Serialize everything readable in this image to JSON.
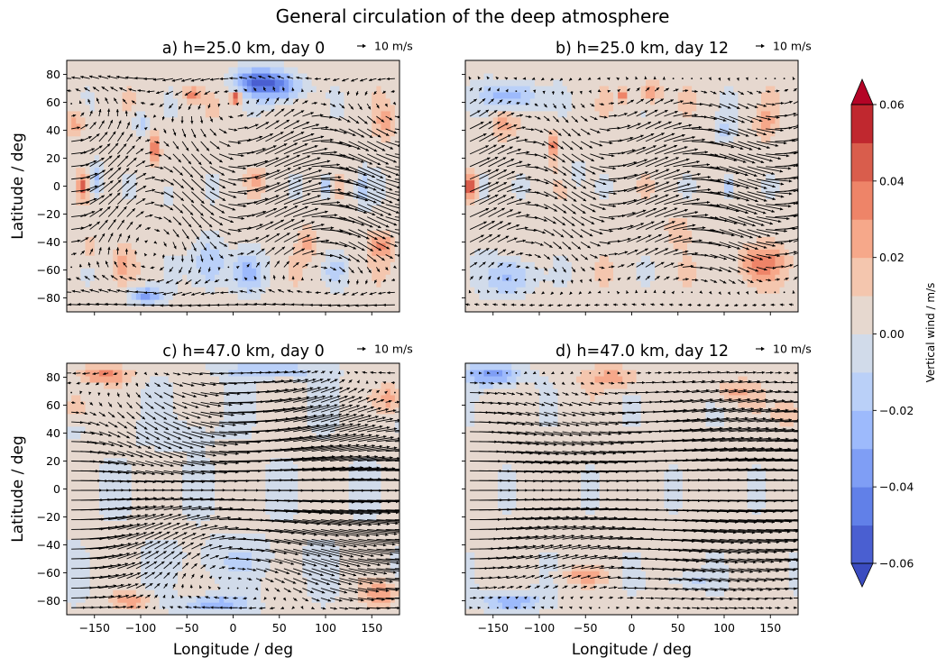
{
  "chart_data": {
    "type": "heatmap",
    "title": "General circulation of the deep atmosphere",
    "xlim": [
      -180,
      180
    ],
    "ylim": [
      -90,
      90
    ],
    "xticks": [
      -150,
      -100,
      -50,
      0,
      50,
      100,
      150
    ],
    "yticks": [
      -80,
      -60,
      -40,
      -20,
      0,
      20,
      40,
      60,
      80
    ],
    "colorbar": {
      "label": "Vertical wind / m/s",
      "levels": [
        -0.06,
        -0.05,
        -0.04,
        -0.03,
        -0.02,
        -0.01,
        0.0,
        0.01,
        0.02,
        0.03,
        0.04,
        0.05,
        0.06
      ],
      "tick_values": [
        -0.06,
        -0.04,
        -0.02,
        0.0,
        0.02,
        0.04,
        0.06
      ],
      "tick_labels": [
        "−0.06",
        "−0.04",
        "−0.02",
        "0.00",
        "0.02",
        "0.04",
        "0.06"
      ],
      "extend": "both",
      "colors": [
        "#4a5fd1",
        "#6180e8",
        "#7f9ef5",
        "#9dbafc",
        "#bad0f8",
        "#d1dbea",
        "#e6d8cf",
        "#f4c6ae",
        "#f6a88a",
        "#ee8468",
        "#d95d4c",
        "#c0282f"
      ],
      "under_color": "#3b4cc0",
      "over_color": "#b40426"
    },
    "quiver_key": {
      "magnitude": 10,
      "label": "10 m/s"
    },
    "panels": [
      {
        "title": "a) h=25.0 km, day 0",
        "height_km": 25.0,
        "day": 0,
        "xlabel": "",
        "ylabel": "Latitude / deg",
        "background_value": 0.005,
        "anomalies": [
          {
            "lon": 3,
            "lat": 64,
            "w": 0.06,
            "rlon": 5,
            "rlat": 4
          },
          {
            "lon": 28,
            "lat": 75,
            "w": -0.05,
            "rlon": 28,
            "rlat": 10
          },
          {
            "lon": 55,
            "lat": 70,
            "w": -0.03,
            "rlon": 25,
            "rlat": 10
          },
          {
            "lon": -45,
            "lat": 66,
            "w": 0.03,
            "rlon": 9,
            "rlat": 5
          },
          {
            "lon": -85,
            "lat": 28,
            "w": 0.04,
            "rlon": 5,
            "rlat": 10
          },
          {
            "lon": -163,
            "lat": 0,
            "w": 0.04,
            "rlon": 5,
            "rlat": 7
          },
          {
            "lon": -148,
            "lat": 5,
            "w": -0.03,
            "rlon": 6,
            "rlat": 14
          },
          {
            "lon": 100,
            "lat": 0,
            "w": -0.03,
            "rlon": 6,
            "rlat": 10
          },
          {
            "lon": 140,
            "lat": -2,
            "w": -0.02,
            "rlon": 8,
            "rlat": 14
          },
          {
            "lon": -25,
            "lat": -55,
            "w": -0.03,
            "rlon": 18,
            "rlat": 18
          },
          {
            "lon": 15,
            "lat": -62,
            "w": -0.025,
            "rlon": 18,
            "rlat": 14
          },
          {
            "lon": -95,
            "lat": -78,
            "w": -0.04,
            "rlon": 18,
            "rlat": 6
          },
          {
            "lon": -100,
            "lat": 45,
            "w": -0.02,
            "rlon": 10,
            "rlat": 8
          },
          {
            "lon": 160,
            "lat": -42,
            "w": 0.025,
            "rlon": 12,
            "rlat": 10
          },
          {
            "lon": -170,
            "lat": 45,
            "w": 0.02,
            "rlon": 10,
            "rlat": 10
          },
          {
            "lon": -155,
            "lat": -45,
            "w": 0.02,
            "rlon": 8,
            "rlat": 8
          },
          {
            "lon": 165,
            "lat": 45,
            "w": 0.02,
            "rlon": 10,
            "rlat": 10
          },
          {
            "lon": 25,
            "lat": 5,
            "w": 0.015,
            "rlon": 8,
            "rlat": 6
          },
          {
            "lon": -70,
            "lat": -5,
            "w": -0.015,
            "rlon": 10,
            "rlat": 12
          },
          {
            "lon": -120,
            "lat": -55,
            "w": 0.015,
            "rlon": 10,
            "rlat": 12
          },
          {
            "lon": 80,
            "lat": -40,
            "w": 0.02,
            "rlon": 8,
            "rlat": 10
          },
          {
            "lon": 110,
            "lat": -60,
            "w": -0.02,
            "rlon": 10,
            "rlat": 10
          }
        ],
        "wind_field": {
          "u": "10*cos(1.5*lat)+5*sin(lon)*cos(lat)",
          "v": "6*sin(2*lon)*cos(lat)",
          "lon_step": 10,
          "lat_step": 9
        }
      },
      {
        "title": "b) h=25.0 km, day 12",
        "height_km": 25.0,
        "day": 12,
        "xlabel": "",
        "ylabel": "",
        "background_value": 0.005,
        "anomalies": [
          {
            "lon": -130,
            "lat": 65,
            "w": -0.035,
            "rlon": 30,
            "rlat": 10
          },
          {
            "lon": -10,
            "lat": 65,
            "w": 0.04,
            "rlon": 4,
            "rlat": 4
          },
          {
            "lon": 20,
            "lat": 68,
            "w": 0.025,
            "rlon": 12,
            "rlat": 8
          },
          {
            "lon": -85,
            "lat": 30,
            "w": 0.035,
            "rlon": 5,
            "rlat": 10
          },
          {
            "lon": -175,
            "lat": 0,
            "w": 0.045,
            "rlon": 5,
            "rlat": 7
          },
          {
            "lon": -160,
            "lat": 0,
            "w": -0.025,
            "rlon": 5,
            "rlat": 10
          },
          {
            "lon": 105,
            "lat": 0,
            "w": -0.035,
            "rlon": 5,
            "rlat": 8
          },
          {
            "lon": -130,
            "lat": -65,
            "w": -0.03,
            "rlon": 25,
            "rlat": 14
          },
          {
            "lon": 140,
            "lat": -55,
            "w": 0.03,
            "rlon": 25,
            "rlat": 12
          },
          {
            "lon": 145,
            "lat": 45,
            "w": 0.02,
            "rlon": 10,
            "rlat": 10
          },
          {
            "lon": -140,
            "lat": 45,
            "w": 0.02,
            "rlon": 12,
            "rlat": 10
          },
          {
            "lon": 50,
            "lat": -30,
            "w": 0.015,
            "rlon": 12,
            "rlat": 10
          },
          {
            "lon": -60,
            "lat": 10,
            "w": -0.015,
            "rlon": 10,
            "rlat": 10
          },
          {
            "lon": 100,
            "lat": 40,
            "w": -0.015,
            "rlon": 10,
            "rlat": 10
          }
        ],
        "wind_field": {
          "u": "11*cos(1.2*lat)+4*sin(lon)*cos(lat)",
          "v": "5*sin(2*lon+1)*cos(lat)",
          "lon_step": 10,
          "lat_step": 9
        }
      },
      {
        "title": "c) h=47.0 km, day 0",
        "height_km": 47.0,
        "day": 0,
        "xlabel": "Longitude / deg",
        "ylabel": "Latitude / deg",
        "background_value": 0.002,
        "anomalies": [
          {
            "lon": -140,
            "lat": 82,
            "w": 0.03,
            "rlon": 30,
            "rlat": 6
          },
          {
            "lon": 40,
            "lat": 85,
            "w": -0.025,
            "rlon": 50,
            "rlat": 5
          },
          {
            "lon": 170,
            "lat": 65,
            "w": 0.025,
            "rlon": 15,
            "rlat": 10
          },
          {
            "lon": -170,
            "lat": 60,
            "w": 0.02,
            "rlon": 15,
            "rlat": 10
          },
          {
            "lon": -20,
            "lat": -82,
            "w": -0.03,
            "rlon": 35,
            "rlat": 6
          },
          {
            "lon": -110,
            "lat": -80,
            "w": 0.025,
            "rlon": 20,
            "rlat": 6
          },
          {
            "lon": 160,
            "lat": -75,
            "w": 0.025,
            "rlon": 20,
            "rlat": 10
          },
          {
            "lon": 0,
            "lat": -50,
            "w": -0.01,
            "rlon": 60,
            "rlat": 15
          },
          {
            "lon": -60,
            "lat": 40,
            "w": -0.01,
            "rlon": 40,
            "rlat": 10
          }
        ],
        "wind_field": {
          "u": "16*cos(lat)+6*sin(lon+lat)",
          "v": "4*sin(lon)*sin(2*lat)",
          "lon_step": 10,
          "lat_step": 7
        }
      },
      {
        "title": "d) h=47.0 km, day 12",
        "height_km": 47.0,
        "day": 12,
        "xlabel": "Longitude / deg",
        "ylabel": "",
        "background_value": 0.004,
        "anomalies": [
          {
            "lon": -150,
            "lat": 82,
            "w": -0.04,
            "rlon": 30,
            "rlat": 8
          },
          {
            "lon": -20,
            "lat": 80,
            "w": 0.02,
            "rlon": 30,
            "rlat": 8
          },
          {
            "lon": 110,
            "lat": 70,
            "w": 0.02,
            "rlon": 20,
            "rlat": 8
          },
          {
            "lon": -130,
            "lat": -80,
            "w": -0.035,
            "rlon": 30,
            "rlat": 7
          },
          {
            "lon": -50,
            "lat": -62,
            "w": 0.02,
            "rlon": 25,
            "rlat": 5
          },
          {
            "lon": 60,
            "lat": -65,
            "w": -0.015,
            "rlon": 30,
            "rlat": 6
          },
          {
            "lon": 170,
            "lat": 55,
            "w": 0.02,
            "rlon": 15,
            "rlat": 10
          }
        ],
        "wind_field": {
          "u": "17*cos(lat)+3*sin(lon)",
          "v": "2*sin(lon)*sin(2*lat)",
          "lon_step": 10,
          "lat_step": 7
        }
      }
    ]
  }
}
